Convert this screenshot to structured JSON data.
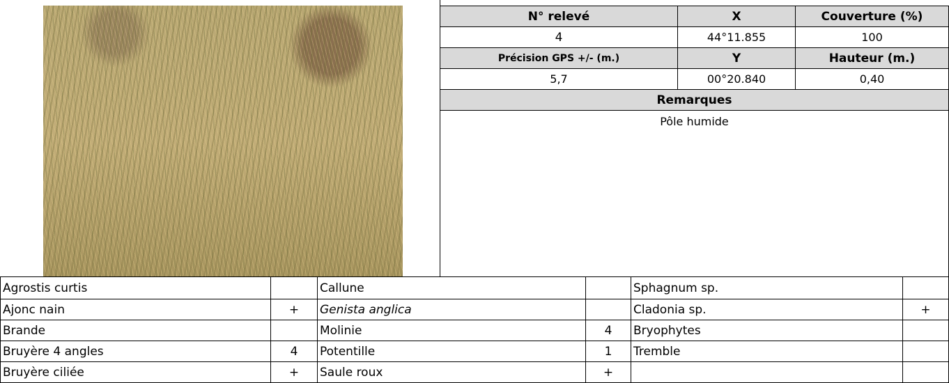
{
  "header": {
    "labels": [
      "N° relevé",
      "X",
      "Couverture (%)",
      "Précision GPS +/- (m.)",
      "Y",
      "Hauteur (m.)",
      "Remarques"
    ],
    "releve": "4",
    "x": "44°11.855",
    "couverture": "100",
    "precision": "5,7",
    "y": "00°20.840",
    "hauteur": "0,40",
    "remarques": "Pôle humide"
  },
  "table": {
    "rows": [
      [
        "Agrostis curtis",
        null,
        "Callune",
        null,
        "Sphagnum sp.",
        null
      ],
      [
        "Ajonc nain",
        "+",
        "Genista anglica",
        null,
        "Cladonia sp.",
        "+"
      ],
      [
        "Brande",
        null,
        "Molinie",
        "4",
        "Bryophytes",
        null
      ],
      [
        "Bruyère 4 angles",
        "4",
        "Potentille",
        "1",
        "Tremble",
        null
      ],
      [
        "Bruyère ciliée",
        "+",
        "Saule roux",
        "+",
        null,
        null
      ]
    ]
  }
}
